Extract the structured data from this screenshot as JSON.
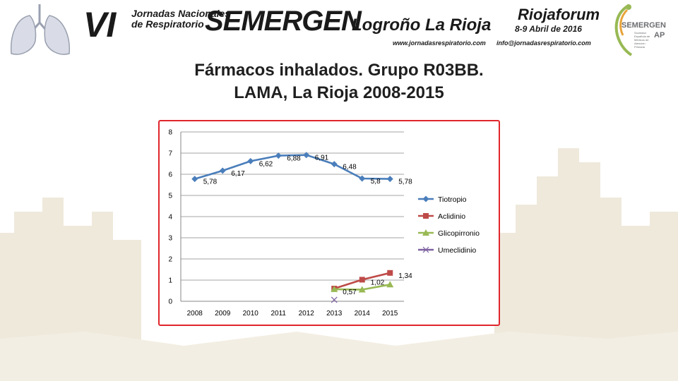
{
  "header": {
    "roman": "VI",
    "jornadas_line1": "Jornadas Nacionales",
    "jornadas_line2": "de Respiratorio",
    "brand": "SEMERGEN",
    "city": "Logroño  La Rioja",
    "website": "www.jornadasrespiratorio.com",
    "venue": "Riojaforum",
    "dates": "8-9 Abril de 2016",
    "email": "info@jornadasrespiratorio.com",
    "logo_name": "SEMERGEN",
    "logo_ap": "AP",
    "logo_sub": "Sociedad Española de Médicos de Atención Primaria"
  },
  "title": {
    "line1": "Fármacos inhalados. Grupo R03BB.",
    "line2": "LAMA, La Rioja 2008-2015"
  },
  "colors": {
    "frame": "#e0262c",
    "tiotropio": "#4a7ebb",
    "aclidinio": "#be4b48",
    "glicopirronio": "#98b954",
    "umeclidinio": "#7d60a0"
  },
  "chart_data": {
    "type": "line",
    "categories": [
      "2008",
      "2009",
      "2010",
      "2011",
      "2012",
      "2013",
      "2014",
      "2015"
    ],
    "ylim": [
      0,
      8
    ],
    "yticks": [
      "0",
      "1",
      "2",
      "3",
      "4",
      "5",
      "6",
      "7",
      "8"
    ],
    "grid": true,
    "legend_position": "right",
    "series": [
      {
        "name": "Tiotropio",
        "marker": "diamond",
        "color": "#4a7ebb",
        "values": [
          5.78,
          6.17,
          6.62,
          6.88,
          6.91,
          6.48,
          5.8,
          5.78
        ],
        "labels": [
          "5,78",
          "6,17",
          "6,62",
          "6,88",
          "6,91",
          "6,48",
          "5,8",
          "5,78"
        ]
      },
      {
        "name": "Aclidinio",
        "marker": "square",
        "color": "#be4b48",
        "values": [
          null,
          null,
          null,
          null,
          null,
          0.6,
          1.02,
          1.34
        ],
        "labels": [
          null,
          null,
          null,
          null,
          null,
          null,
          "1,02",
          "1,34"
        ]
      },
      {
        "name": "Glicopirronio",
        "marker": "triangle",
        "color": "#98b954",
        "values": [
          null,
          null,
          null,
          null,
          null,
          0.57,
          0.55,
          0.79
        ],
        "labels": [
          null,
          null,
          null,
          null,
          null,
          "0,57",
          null,
          null
        ]
      },
      {
        "name": "Umeclidinio",
        "marker": "x",
        "color": "#7d60a0",
        "values": [
          null,
          null,
          null,
          null,
          null,
          0.07,
          null,
          null
        ],
        "labels": [
          null,
          null,
          null,
          null,
          null,
          null,
          null,
          null
        ]
      }
    ]
  }
}
